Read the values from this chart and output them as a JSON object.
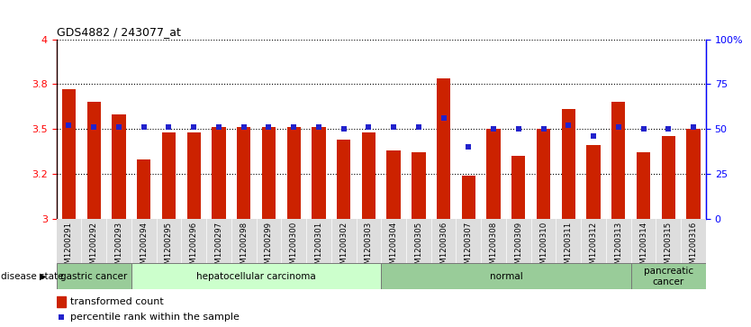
{
  "title": "GDS4882 / 243077_at",
  "samples": [
    "GSM1200291",
    "GSM1200292",
    "GSM1200293",
    "GSM1200294",
    "GSM1200295",
    "GSM1200296",
    "GSM1200297",
    "GSM1200298",
    "GSM1200299",
    "GSM1200300",
    "GSM1200301",
    "GSM1200302",
    "GSM1200303",
    "GSM1200304",
    "GSM1200305",
    "GSM1200306",
    "GSM1200307",
    "GSM1200308",
    "GSM1200309",
    "GSM1200310",
    "GSM1200311",
    "GSM1200312",
    "GSM1200313",
    "GSM1200314",
    "GSM1200315",
    "GSM1200316"
  ],
  "bar_values": [
    3.72,
    3.65,
    3.58,
    3.33,
    3.48,
    3.48,
    3.51,
    3.51,
    3.51,
    3.51,
    3.51,
    3.44,
    3.48,
    3.38,
    3.37,
    3.78,
    3.24,
    3.5,
    3.35,
    3.5,
    3.61,
    3.41,
    3.65,
    3.37,
    3.46,
    3.5
  ],
  "percentile_values": [
    52,
    51,
    51,
    51,
    51,
    51,
    51,
    51,
    51,
    51,
    51,
    50,
    51,
    51,
    51,
    56,
    40,
    50,
    50,
    50,
    52,
    46,
    51,
    50,
    50,
    51
  ],
  "ylim": [
    3.0,
    4.0
  ],
  "y_ticks": [
    3.0,
    3.25,
    3.5,
    3.75,
    4.0
  ],
  "right_yticks": [
    0,
    25,
    50,
    75,
    100
  ],
  "right_yticklabels": [
    "0",
    "25",
    "50",
    "75",
    "100%"
  ],
  "bar_color": "#cc2200",
  "percentile_color": "#2222cc",
  "disease_groups": [
    {
      "label": "gastric cancer",
      "start": 0,
      "end": 3,
      "color": "#99cc99"
    },
    {
      "label": "hepatocellular carcinoma",
      "start": 3,
      "end": 13,
      "color": "#ccffcc"
    },
    {
      "label": "normal",
      "start": 13,
      "end": 23,
      "color": "#99cc99"
    },
    {
      "label": "pancreatic\ncancer",
      "start": 23,
      "end": 26,
      "color": "#99cc99"
    }
  ],
  "xlabel_disease_state": "disease state",
  "legend_bar": "transformed count",
  "legend_pct": "percentile rank within the sample"
}
